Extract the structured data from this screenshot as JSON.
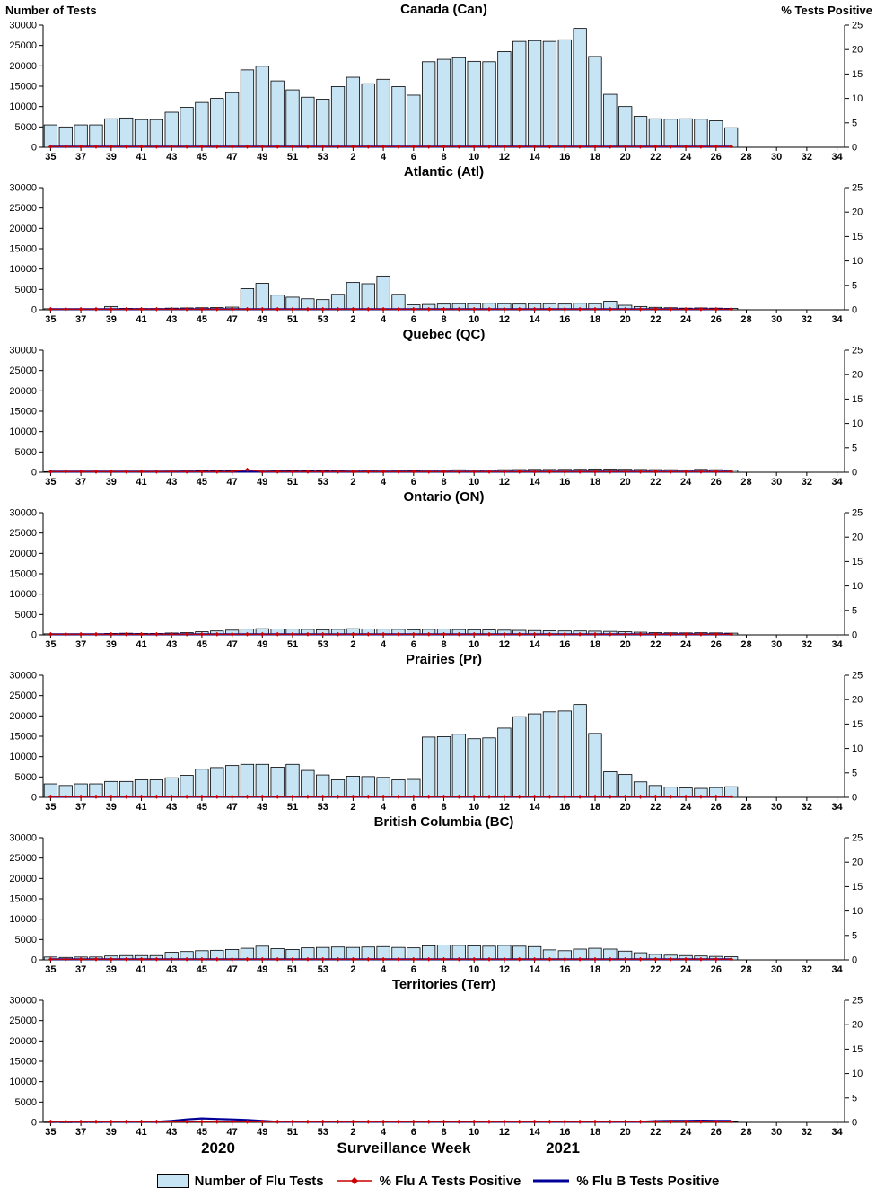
{
  "header": {
    "left_axis_title": "Number of Tests",
    "right_axis_title": "% Tests Positive"
  },
  "footer": {
    "year_left": "2020",
    "xlabel": "Surveillance Week",
    "year_right": "2021"
  },
  "legend": {
    "tests_label": "Number of Flu Tests",
    "fluA_label": "% Flu A Tests Positive",
    "fluB_label": "% Flu B Tests Positive"
  },
  "colors": {
    "bar_fill": "#C7E4F5",
    "bar_stroke": "#000000",
    "fluA": "#CC0000",
    "fluB": "#000099",
    "text": "#000000"
  },
  "axes": {
    "left_ticks": [
      0,
      5000,
      10000,
      15000,
      20000,
      25000,
      30000
    ],
    "left_max": 30000,
    "right_ticks": [
      0,
      5,
      10,
      15,
      20,
      25
    ],
    "right_max": 25,
    "week_tick_labels": [
      "35",
      "37",
      "39",
      "41",
      "43",
      "45",
      "47",
      "49",
      "51",
      "53",
      "2",
      "4",
      "6",
      "8",
      "10",
      "12",
      "14",
      "16",
      "18",
      "20",
      "22",
      "24",
      "26",
      "28",
      "30",
      "32",
      "34"
    ],
    "week_span": "2020-W35 through 2021-W27 (axis extends to 2021-W34)"
  },
  "chart_data": [
    {
      "type": "bar",
      "title": "Canada (Can)",
      "tests": [
        5500,
        5000,
        5500,
        5500,
        7000,
        7200,
        6800,
        6800,
        8600,
        9800,
        11000,
        12000,
        13400,
        19000,
        19900,
        16300,
        14100,
        12300,
        11800,
        14900,
        17200,
        15600,
        16700,
        14900,
        12800,
        21000,
        21600,
        22000,
        21100,
        21000,
        23500,
        26000,
        26200,
        26000,
        26400,
        29200,
        22300,
        13000,
        10000,
        7600,
        7000,
        6900,
        7000,
        6900,
        6500,
        4800
      ],
      "pct_fluA": {
        "default": 0.12,
        "overrides": {}
      },
      "pct_fluB": {
        "default": 0.12,
        "overrides": {}
      }
    },
    {
      "type": "bar",
      "title": "Atlantic (Atl)",
      "tests": [
        250,
        200,
        250,
        250,
        800,
        350,
        300,
        300,
        400,
        450,
        500,
        550,
        650,
        5200,
        6500,
        3600,
        3100,
        2700,
        2500,
        3800,
        6700,
        6400,
        8300,
        3800,
        1200,
        1300,
        1400,
        1500,
        1500,
        1600,
        1500,
        1400,
        1500,
        1500,
        1400,
        1600,
        1500,
        2100,
        1100,
        800,
        600,
        500,
        400,
        450,
        400,
        350
      ],
      "pct_fluA": {
        "default": 0.12,
        "overrides": {}
      },
      "pct_fluB": {
        "default": 0.12,
        "overrides": {}
      }
    },
    {
      "type": "bar",
      "title": "Quebec (QC)",
      "tests": [
        150,
        120,
        150,
        150,
        220,
        220,
        220,
        220,
        260,
        300,
        350,
        380,
        420,
        500,
        520,
        450,
        420,
        380,
        380,
        450,
        520,
        480,
        520,
        480,
        450,
        520,
        560,
        600,
        560,
        560,
        620,
        650,
        700,
        680,
        700,
        720,
        800,
        760,
        720,
        680,
        640,
        620,
        580,
        700,
        620,
        500
      ],
      "pct_fluA": {
        "default": 0.12,
        "overrides": {
          "13": 0.5
        }
      },
      "pct_fluB": {
        "default": 0.12,
        "overrides": {}
      }
    },
    {
      "type": "bar",
      "title": "Ontario (ON)",
      "tests": [
        250,
        200,
        250,
        250,
        350,
        400,
        350,
        350,
        450,
        550,
        750,
        950,
        1150,
        1400,
        1500,
        1450,
        1400,
        1350,
        1250,
        1350,
        1500,
        1450,
        1400,
        1350,
        1250,
        1350,
        1400,
        1300,
        1250,
        1200,
        1150,
        1100,
        1050,
        1000,
        950,
        950,
        900,
        850,
        750,
        650,
        550,
        500,
        480,
        520,
        480,
        420
      ],
      "pct_fluA": {
        "default": 0.12,
        "overrides": {}
      },
      "pct_fluB": {
        "default": 0.12,
        "overrides": {}
      }
    },
    {
      "type": "bar",
      "title": "Prairies (Pr)",
      "tests": [
        3300,
        2900,
        3300,
        3300,
        3900,
        3900,
        4300,
        4300,
        4800,
        5400,
        6900,
        7300,
        7800,
        8100,
        8100,
        7400,
        8100,
        6600,
        5500,
        4300,
        5200,
        5100,
        4900,
        4300,
        4400,
        14800,
        14900,
        15500,
        14400,
        14600,
        17000,
        19800,
        20500,
        21000,
        21200,
        22800,
        15700,
        6300,
        5600,
        3800,
        2900,
        2500,
        2300,
        2200,
        2400,
        2600
      ],
      "pct_fluA": {
        "default": 0.12,
        "overrides": {}
      },
      "pct_fluB": {
        "default": 0.12,
        "overrides": {}
      }
    },
    {
      "type": "bar",
      "title": "British Columbia (BC)",
      "tests": [
        700,
        600,
        700,
        700,
        950,
        1050,
        1050,
        1050,
        1850,
        2050,
        2250,
        2350,
        2550,
        2850,
        3350,
        2750,
        2550,
        2950,
        3050,
        3150,
        3050,
        3150,
        3250,
        3050,
        2950,
        3450,
        3650,
        3550,
        3450,
        3350,
        3550,
        3350,
        3250,
        2450,
        2250,
        2650,
        2850,
        2650,
        2150,
        1750,
        1350,
        1150,
        1050,
        950,
        850,
        750
      ],
      "pct_fluA": {
        "default": 0.12,
        "overrides": {}
      },
      "pct_fluB": {
        "default": 0.12,
        "overrides": {}
      }
    },
    {
      "type": "bar",
      "title": "Territories (Terr)",
      "tests": [
        80,
        60,
        80,
        80,
        100,
        100,
        100,
        100,
        120,
        150,
        200,
        250,
        280,
        250,
        200,
        150,
        120,
        120,
        120,
        120,
        130,
        120,
        130,
        120,
        120,
        130,
        140,
        130,
        130,
        120,
        130,
        140,
        150,
        140,
        130,
        140,
        150,
        140,
        130,
        120,
        110,
        150,
        160,
        170,
        160,
        140
      ],
      "pct_fluA": {
        "default": 0.12,
        "overrides": {}
      },
      "pct_fluB": {
        "default": 0.12,
        "overrides": {
          "8": 0.3,
          "9": 0.6,
          "10": 0.8,
          "11": 0.7,
          "12": 0.6,
          "13": 0.5,
          "14": 0.3,
          "40": 0.25,
          "41": 0.3,
          "42": 0.3,
          "43": 0.35,
          "44": 0.3,
          "45": 0.3
        }
      }
    }
  ]
}
